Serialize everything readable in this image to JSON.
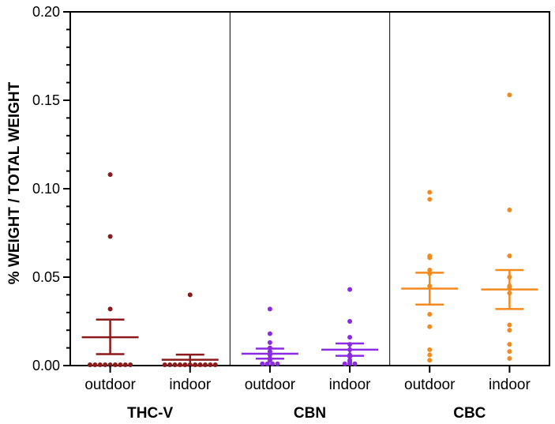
{
  "chart_data": {
    "type": "scatter",
    "title": "",
    "ylabel": "% WEIGHT / TOTAL WEIGHT",
    "xlabel": "",
    "ylim": [
      0,
      0.2
    ],
    "yticks": [
      "0.00",
      "0.05",
      "0.10",
      "0.15",
      "0.20"
    ],
    "yticks_values": [
      0,
      0.05,
      0.1,
      0.15,
      0.2
    ],
    "grid": false,
    "groups": [
      {
        "name": "THC-V",
        "color": "#8b1a1a",
        "categories": [
          {
            "label": "outdoor",
            "points": [
              0.108,
              0.073,
              0.032,
              0,
              0,
              0,
              0,
              0,
              0,
              0,
              0,
              0
            ],
            "mean": 0.016,
            "sem_low": 0.0065,
            "sem_high": 0.026
          },
          {
            "label": "indoor",
            "points": [
              0.04,
              0,
              0,
              0,
              0,
              0,
              0,
              0,
              0,
              0,
              0,
              0
            ],
            "mean": 0.0033,
            "sem_low": 0,
            "sem_high": 0.0062
          }
        ]
      },
      {
        "name": "CBN",
        "color": "#8a2be2",
        "categories": [
          {
            "label": "outdoor",
            "points": [
              0.032,
              0.018,
              0.013,
              0.01,
              0.008,
              0.006,
              0.004,
              0.003,
              0.001,
              0.001,
              0.001,
              0.001
            ],
            "mean": 0.0067,
            "sem_low": 0.0039,
            "sem_high": 0.0096
          },
          {
            "label": "indoor",
            "points": [
              0.043,
              0.025,
              0.016,
              0.012,
              0.009,
              0.006,
              0.005,
              0.003,
              0.002,
              0.001,
              0.001,
              0.001
            ],
            "mean": 0.009,
            "sem_low": 0.0055,
            "sem_high": 0.0125
          }
        ]
      },
      {
        "name": "CBC",
        "color": "#f28a1e",
        "categories": [
          {
            "label": "outdoor",
            "points": [
              0.098,
              0.094,
              0.062,
              0.061,
              0.054,
              0.052,
              0.045,
              0.029,
              0.022,
              0.009,
              0.006,
              0.003
            ],
            "mean": 0.0435,
            "sem_low": 0.0345,
            "sem_high": 0.0525
          },
          {
            "label": "indoor",
            "points": [
              0.153,
              0.088,
              0.062,
              0.05,
              0.045,
              0.044,
              0.041,
              0.023,
              0.02,
              0.012,
              0.008,
              0.004
            ],
            "mean": 0.043,
            "sem_low": 0.032,
            "sem_high": 0.054
          }
        ]
      }
    ]
  }
}
